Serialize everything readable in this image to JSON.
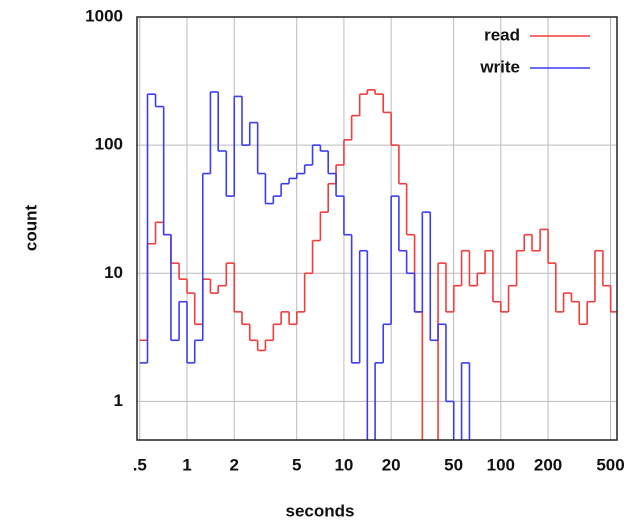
{
  "chart_data": {
    "type": "step",
    "xlabel": "seconds",
    "ylabel": "count",
    "xscale": "log",
    "yscale": "log",
    "grid": true,
    "legend": "upper right",
    "x": [
      0.5,
      0.56,
      0.63,
      0.71,
      0.79,
      0.89,
      1,
      1.12,
      1.26,
      1.41,
      1.58,
      1.78,
      2,
      2.24,
      2.51,
      2.82,
      3.16,
      3.55,
      3.98,
      4.47,
      5.01,
      5.62,
      6.31,
      7.08,
      7.94,
      8.91,
      10,
      11.2,
      12.6,
      14.1,
      15.8,
      17.8,
      20,
      22.4,
      25.1,
      28.2,
      31.6,
      35.5,
      39.8,
      44.7,
      50.1,
      56.2,
      63.1,
      70.8,
      79.4,
      89.1,
      100,
      112,
      126,
      141,
      158,
      178,
      200,
      224,
      251,
      282,
      316,
      355,
      398,
      447,
      501
    ],
    "series": [
      {
        "name": "read",
        "color": "#f03c3c",
        "values": [
          3,
          17,
          25,
          20,
          12,
          9,
          7,
          4,
          9,
          7,
          8,
          12,
          5,
          4,
          3,
          2.5,
          3,
          4,
          5,
          4,
          5,
          10,
          18,
          30,
          50,
          70,
          110,
          170,
          250,
          270,
          250,
          180,
          100,
          50,
          20,
          5,
          null,
          null,
          12,
          5,
          8,
          15,
          8,
          10,
          15,
          6,
          5,
          8,
          15,
          20,
          15,
          22,
          12,
          5,
          7,
          6,
          4,
          6,
          15,
          8,
          5
        ]
      },
      {
        "name": "write",
        "color": "#3c3cf0",
        "values": [
          2,
          250,
          200,
          20,
          3,
          6,
          2,
          3,
          60,
          260,
          90,
          40,
          240,
          100,
          150,
          60,
          35,
          40,
          50,
          55,
          60,
          70,
          100,
          90,
          60,
          40,
          20,
          2,
          15,
          null,
          2,
          4,
          40,
          15,
          10,
          5,
          30,
          3,
          4,
          1,
          null,
          2,
          null,
          null,
          null,
          null,
          null,
          null,
          null,
          null,
          null,
          null,
          null,
          null,
          null,
          null,
          null,
          null,
          null,
          null,
          null
        ]
      }
    ],
    "xlim": [
      0.48,
      550
    ],
    "ylim": [
      0.5,
      1000
    ],
    "xticks": [
      {
        "value": 0.5,
        "label": ".5"
      },
      1,
      2,
      5,
      10,
      20,
      50,
      100,
      200,
      500
    ],
    "yticks": [
      1,
      10,
      100,
      1000
    ]
  }
}
